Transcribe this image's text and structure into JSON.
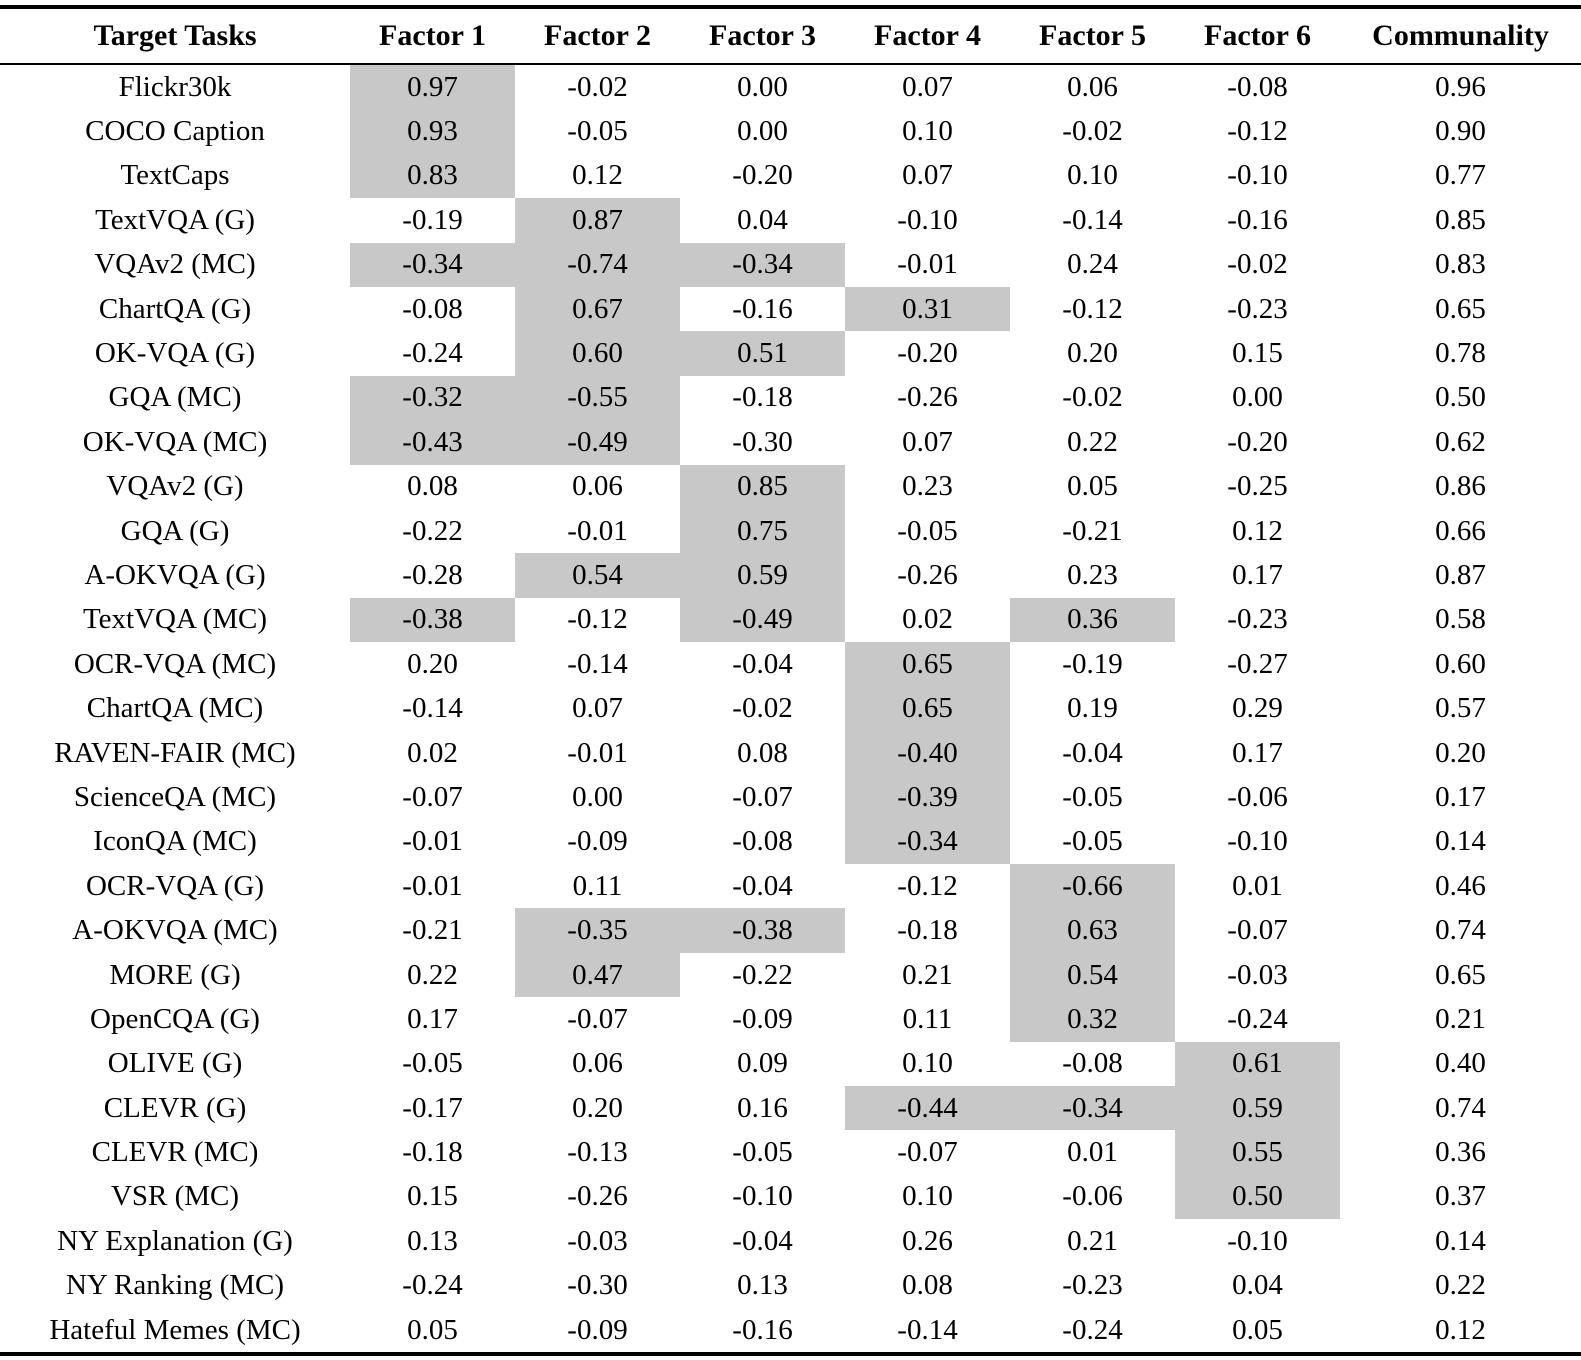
{
  "table": {
    "highlight_color": "#c8c8c8",
    "headers": [
      "Target Tasks",
      "Factor 1",
      "Factor 2",
      "Factor 3",
      "Factor 4",
      "Factor 5",
      "Factor 6",
      "Communality"
    ],
    "rows": [
      {
        "task": "Flickr30k",
        "values": [
          "0.97",
          "-0.02",
          "0.00",
          "0.07",
          "0.06",
          "-0.08",
          "0.96"
        ],
        "highlight": [
          1,
          0,
          0,
          0,
          0,
          0
        ]
      },
      {
        "task": "COCO Caption",
        "values": [
          "0.93",
          "-0.05",
          "0.00",
          "0.10",
          "-0.02",
          "-0.12",
          "0.90"
        ],
        "highlight": [
          1,
          0,
          0,
          0,
          0,
          0
        ]
      },
      {
        "task": "TextCaps",
        "values": [
          "0.83",
          "0.12",
          "-0.20",
          "0.07",
          "0.10",
          "-0.10",
          "0.77"
        ],
        "highlight": [
          1,
          0,
          0,
          0,
          0,
          0
        ]
      },
      {
        "task": "TextVQA (G)",
        "values": [
          "-0.19",
          "0.87",
          "0.04",
          "-0.10",
          "-0.14",
          "-0.16",
          "0.85"
        ],
        "highlight": [
          0,
          1,
          0,
          0,
          0,
          0
        ]
      },
      {
        "task": "VQAv2 (MC)",
        "values": [
          "-0.34",
          "-0.74",
          "-0.34",
          "-0.01",
          "0.24",
          "-0.02",
          "0.83"
        ],
        "highlight": [
          1,
          1,
          1,
          0,
          0,
          0
        ]
      },
      {
        "task": "ChartQA (G)",
        "values": [
          "-0.08",
          "0.67",
          "-0.16",
          "0.31",
          "-0.12",
          "-0.23",
          "0.65"
        ],
        "highlight": [
          0,
          1,
          0,
          1,
          0,
          0
        ]
      },
      {
        "task": "OK-VQA (G)",
        "values": [
          "-0.24",
          "0.60",
          "0.51",
          "-0.20",
          "0.20",
          "0.15",
          "0.78"
        ],
        "highlight": [
          0,
          1,
          1,
          0,
          0,
          0
        ]
      },
      {
        "task": "GQA (MC)",
        "values": [
          "-0.32",
          "-0.55",
          "-0.18",
          "-0.26",
          "-0.02",
          "0.00",
          "0.50"
        ],
        "highlight": [
          1,
          1,
          0,
          0,
          0,
          0
        ]
      },
      {
        "task": "OK-VQA (MC)",
        "values": [
          "-0.43",
          "-0.49",
          "-0.30",
          "0.07",
          "0.22",
          "-0.20",
          "0.62"
        ],
        "highlight": [
          1,
          1,
          0,
          0,
          0,
          0
        ]
      },
      {
        "task": "VQAv2 (G)",
        "values": [
          "0.08",
          "0.06",
          "0.85",
          "0.23",
          "0.05",
          "-0.25",
          "0.86"
        ],
        "highlight": [
          0,
          0,
          1,
          0,
          0,
          0
        ]
      },
      {
        "task": "GQA (G)",
        "values": [
          "-0.22",
          "-0.01",
          "0.75",
          "-0.05",
          "-0.21",
          "0.12",
          "0.66"
        ],
        "highlight": [
          0,
          0,
          1,
          0,
          0,
          0
        ]
      },
      {
        "task": "A-OKVQA (G)",
        "values": [
          "-0.28",
          "0.54",
          "0.59",
          "-0.26",
          "0.23",
          "0.17",
          "0.87"
        ],
        "highlight": [
          0,
          1,
          1,
          0,
          0,
          0
        ]
      },
      {
        "task": "TextVQA (MC)",
        "values": [
          "-0.38",
          "-0.12",
          "-0.49",
          "0.02",
          "0.36",
          "-0.23",
          "0.58"
        ],
        "highlight": [
          1,
          0,
          1,
          0,
          1,
          0
        ]
      },
      {
        "task": "OCR-VQA (MC)",
        "values": [
          "0.20",
          "-0.14",
          "-0.04",
          "0.65",
          "-0.19",
          "-0.27",
          "0.60"
        ],
        "highlight": [
          0,
          0,
          0,
          1,
          0,
          0
        ]
      },
      {
        "task": "ChartQA (MC)",
        "values": [
          "-0.14",
          "0.07",
          "-0.02",
          "0.65",
          "0.19",
          "0.29",
          "0.57"
        ],
        "highlight": [
          0,
          0,
          0,
          1,
          0,
          0
        ]
      },
      {
        "task": "RAVEN-FAIR (MC)",
        "values": [
          "0.02",
          "-0.01",
          "0.08",
          "-0.40",
          "-0.04",
          "0.17",
          "0.20"
        ],
        "highlight": [
          0,
          0,
          0,
          1,
          0,
          0
        ]
      },
      {
        "task": "ScienceQA (MC)",
        "values": [
          "-0.07",
          "0.00",
          "-0.07",
          "-0.39",
          "-0.05",
          "-0.06",
          "0.17"
        ],
        "highlight": [
          0,
          0,
          0,
          1,
          0,
          0
        ]
      },
      {
        "task": "IconQA (MC)",
        "values": [
          "-0.01",
          "-0.09",
          "-0.08",
          "-0.34",
          "-0.05",
          "-0.10",
          "0.14"
        ],
        "highlight": [
          0,
          0,
          0,
          1,
          0,
          0
        ]
      },
      {
        "task": "OCR-VQA (G)",
        "values": [
          "-0.01",
          "0.11",
          "-0.04",
          "-0.12",
          "-0.66",
          "0.01",
          "0.46"
        ],
        "highlight": [
          0,
          0,
          0,
          0,
          1,
          0
        ]
      },
      {
        "task": "A-OKVQA (MC)",
        "values": [
          "-0.21",
          "-0.35",
          "-0.38",
          "-0.18",
          "0.63",
          "-0.07",
          "0.74"
        ],
        "highlight": [
          0,
          1,
          1,
          0,
          1,
          0
        ]
      },
      {
        "task": "MORE (G)",
        "values": [
          "0.22",
          "0.47",
          "-0.22",
          "0.21",
          "0.54",
          "-0.03",
          "0.65"
        ],
        "highlight": [
          0,
          1,
          0,
          0,
          1,
          0
        ]
      },
      {
        "task": "OpenCQA (G)",
        "values": [
          "0.17",
          "-0.07",
          "-0.09",
          "0.11",
          "0.32",
          "-0.24",
          "0.21"
        ],
        "highlight": [
          0,
          0,
          0,
          0,
          1,
          0
        ]
      },
      {
        "task": "OLIVE (G)",
        "values": [
          "-0.05",
          "0.06",
          "0.09",
          "0.10",
          "-0.08",
          "0.61",
          "0.40"
        ],
        "highlight": [
          0,
          0,
          0,
          0,
          0,
          1
        ]
      },
      {
        "task": "CLEVR (G)",
        "values": [
          "-0.17",
          "0.20",
          "0.16",
          "-0.44",
          "-0.34",
          "0.59",
          "0.74"
        ],
        "highlight": [
          0,
          0,
          0,
          1,
          1,
          1
        ]
      },
      {
        "task": "CLEVR (MC)",
        "values": [
          "-0.18",
          "-0.13",
          "-0.05",
          "-0.07",
          "0.01",
          "0.55",
          "0.36"
        ],
        "highlight": [
          0,
          0,
          0,
          0,
          0,
          1
        ]
      },
      {
        "task": "VSR (MC)",
        "values": [
          "0.15",
          "-0.26",
          "-0.10",
          "0.10",
          "-0.06",
          "0.50",
          "0.37"
        ],
        "highlight": [
          0,
          0,
          0,
          0,
          0,
          1
        ]
      },
      {
        "task": "NY Explanation (G)",
        "values": [
          "0.13",
          "-0.03",
          "-0.04",
          "0.26",
          "0.21",
          "-0.10",
          "0.14"
        ],
        "highlight": [
          0,
          0,
          0,
          0,
          0,
          0
        ]
      },
      {
        "task": "NY Ranking (MC)",
        "values": [
          "-0.24",
          "-0.30",
          "0.13",
          "0.08",
          "-0.23",
          "0.04",
          "0.22"
        ],
        "highlight": [
          0,
          0,
          0,
          0,
          0,
          0
        ]
      },
      {
        "task": "Hateful Memes (MC)",
        "values": [
          "0.05",
          "-0.09",
          "-0.16",
          "-0.14",
          "-0.24",
          "0.05",
          "0.12"
        ],
        "highlight": [
          0,
          0,
          0,
          0,
          0,
          0
        ]
      }
    ]
  }
}
